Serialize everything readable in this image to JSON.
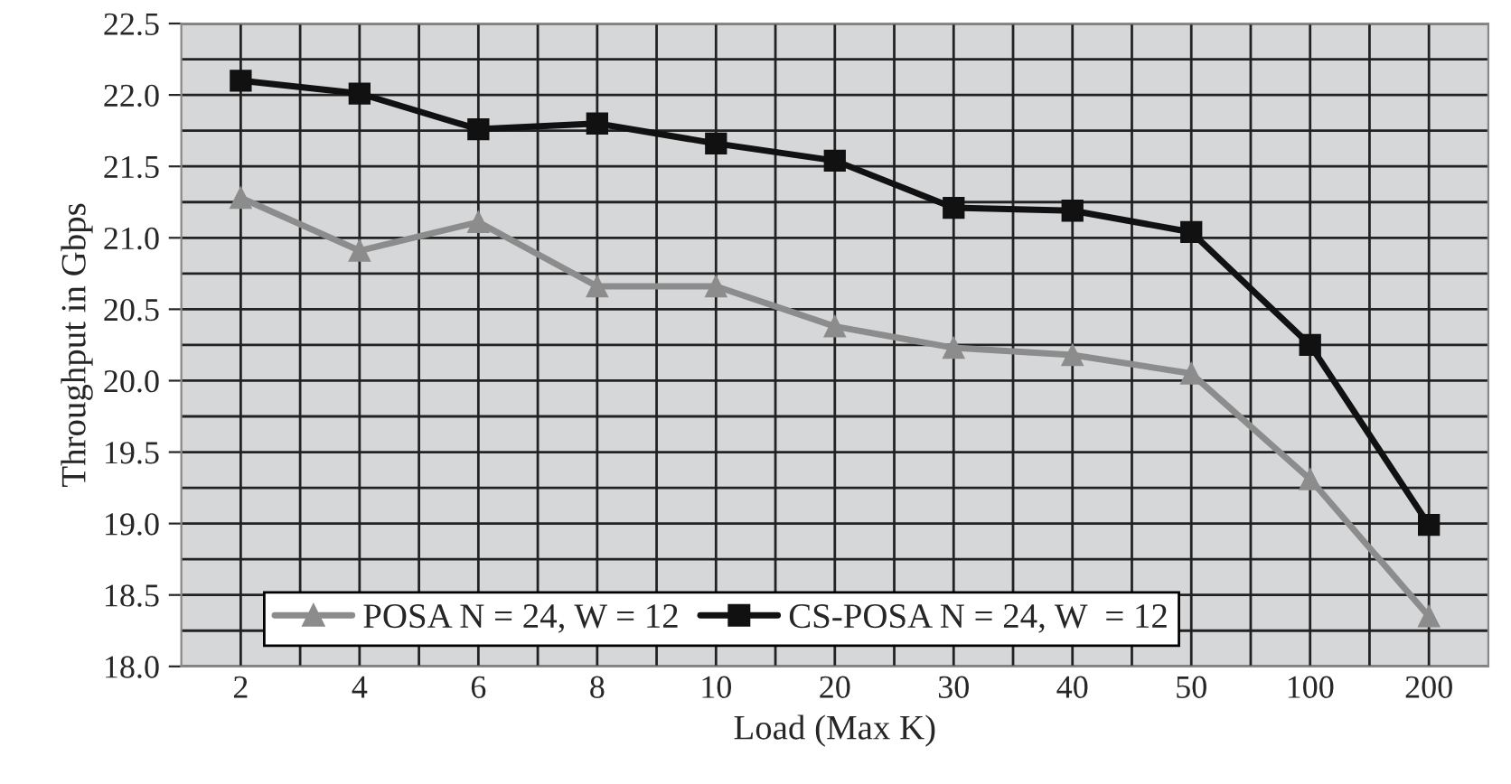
{
  "chart_data": {
    "type": "line",
    "xlabel": "Load (Max K)",
    "ylabel": "Throughput in Gbps",
    "categories": [
      "2",
      "4",
      "6",
      "8",
      "10",
      "20",
      "30",
      "40",
      "50",
      "100",
      "200"
    ],
    "series": [
      {
        "name": "POSA N = 24, W = 12",
        "color": "#8c8c8c",
        "marker": "triangle",
        "values": [
          21.28,
          20.91,
          21.11,
          20.66,
          20.66,
          20.38,
          20.23,
          20.18,
          20.05,
          19.31,
          18.35
        ]
      },
      {
        "name": "CS-POSA N = 24, W  = 12",
        "color": "#111111",
        "marker": "square",
        "values": [
          22.1,
          22.01,
          21.76,
          21.8,
          21.66,
          21.54,
          21.21,
          21.19,
          21.04,
          20.25,
          18.99
        ]
      }
    ],
    "ylim": [
      18.0,
      22.5
    ],
    "yticks": [
      {
        "value": 18,
        "label": "18.0"
      },
      18.5,
      {
        "value": 19,
        "label": "19.0"
      },
      19.5,
      {
        "value": 20,
        "label": "20.0"
      },
      20.5,
      {
        "value": 21,
        "label": "21.0"
      },
      21.5,
      {
        "value": 22,
        "label": "22.0"
      },
      22.5
    ],
    "grid": true,
    "legend": "bottom left",
    "line_style": "solid"
  }
}
